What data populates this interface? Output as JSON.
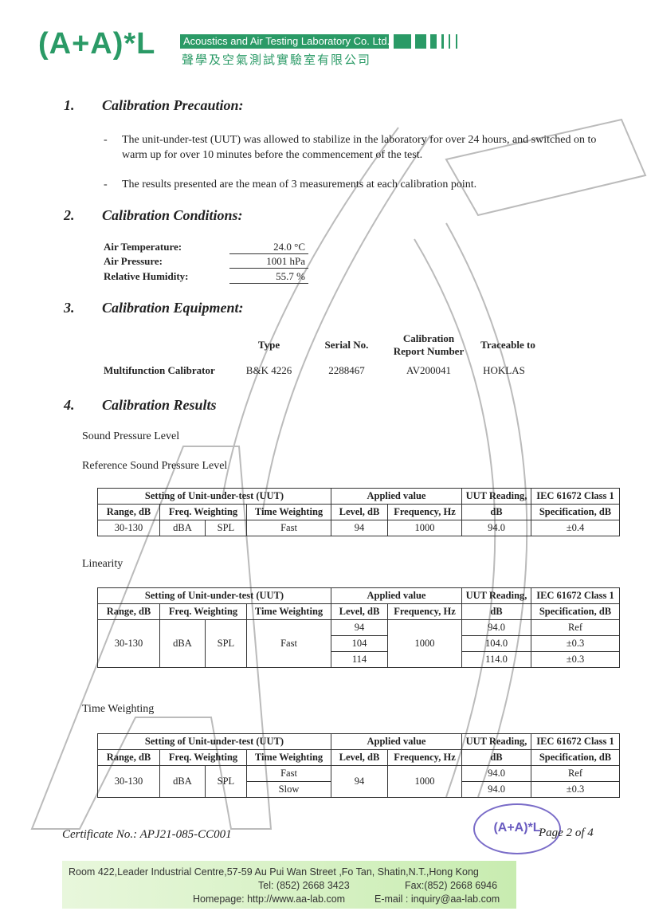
{
  "header": {
    "logo": "(A+A)*L",
    "company_en": "Acoustics and Air Testing Laboratory Co. Ltd.",
    "company_cn": "聲學及空氣測試實驗室有限公司",
    "brand_color": "#2a9a66"
  },
  "s1": {
    "num": "1.",
    "title": "Calibration Precaution:",
    "items": [
      "The unit-under-test (UUT) was allowed to stabilize in the laboratory for over 24 hours, and switched on to warm up for over 10 minutes before the commencement of the test.",
      "The results presented are the mean of 3 measurements at each calibration point."
    ]
  },
  "s2": {
    "num": "2.",
    "title": "Calibration Conditions:",
    "rows": [
      {
        "label": "Air Temperature:",
        "value": "24.0 °C"
      },
      {
        "label": "Air Pressure:",
        "value": "1001 hPa"
      },
      {
        "label": "Relative Humidity:",
        "value": "55.7 %"
      }
    ]
  },
  "s3": {
    "num": "3.",
    "title": "Calibration Equipment:",
    "headers": [
      "Type",
      "Serial No.",
      "Calibration Report Number",
      "Traceable to"
    ],
    "row": {
      "name": "Multifunction Calibrator",
      "type": "B&K 4226",
      "serial": "2288467",
      "report": "AV200041",
      "trace": "HOKLAS"
    }
  },
  "s4": {
    "num": "4.",
    "title": "Calibration Results",
    "sub1": "Sound Pressure Level",
    "sub2": "Reference Sound Pressure Level",
    "linearity": "Linearity",
    "timew": "Time Weighting"
  },
  "th": {
    "setting": "Setting of Unit-under-test (UUT)",
    "applied": "Applied value",
    "uut": "UUT Reading,",
    "iec": "IEC 61672 Class 1",
    "range": "Range, dB",
    "freqw": "Freq. Weighting",
    "timew": "Time Weighting",
    "level": "Level, dB",
    "freq": "Frequency, Hz",
    "db": "dB",
    "spec": "Specification, dB"
  },
  "t1": {
    "range": "30-130",
    "fw": "dBA",
    "mode": "SPL",
    "tw": "Fast",
    "level": "94",
    "freq": "1000",
    "reading": "94.0",
    "spec": "±0.4"
  },
  "t2": {
    "range": "30-130",
    "fw": "dBA",
    "mode": "SPL",
    "tw": "Fast",
    "freq": "1000",
    "rows": [
      {
        "level": "94",
        "reading": "94.0",
        "spec": "Ref"
      },
      {
        "level": "104",
        "reading": "104.0",
        "spec": "±0.3"
      },
      {
        "level": "114",
        "reading": "114.0",
        "spec": "±0.3"
      }
    ]
  },
  "t3": {
    "range": "30-130",
    "fw": "dBA",
    "mode": "SPL",
    "level": "94",
    "freq": "1000",
    "rows": [
      {
        "tw": "Fast",
        "reading": "94.0",
        "spec": "Ref"
      },
      {
        "tw": "Slow",
        "reading": "94.0",
        "spec": "±0.3"
      }
    ]
  },
  "certificate": "Certificate No.: APJ21-085-CC001",
  "page": "Page 2 of 4",
  "footer": {
    "address": "Room 422,Leader Industrial Centre,57-59 Au Pui Wan Street ,Fo Tan, Shatin,N.T.,Hong Kong",
    "tel": "Tel: (852) 2668 3423",
    "fax": "Fax:(852) 2668 6946",
    "web": "Homepage: http://www.aa-lab.com",
    "email": "E-mail : inquiry@aa-lab.com"
  },
  "stamp": "(A+A)*L"
}
